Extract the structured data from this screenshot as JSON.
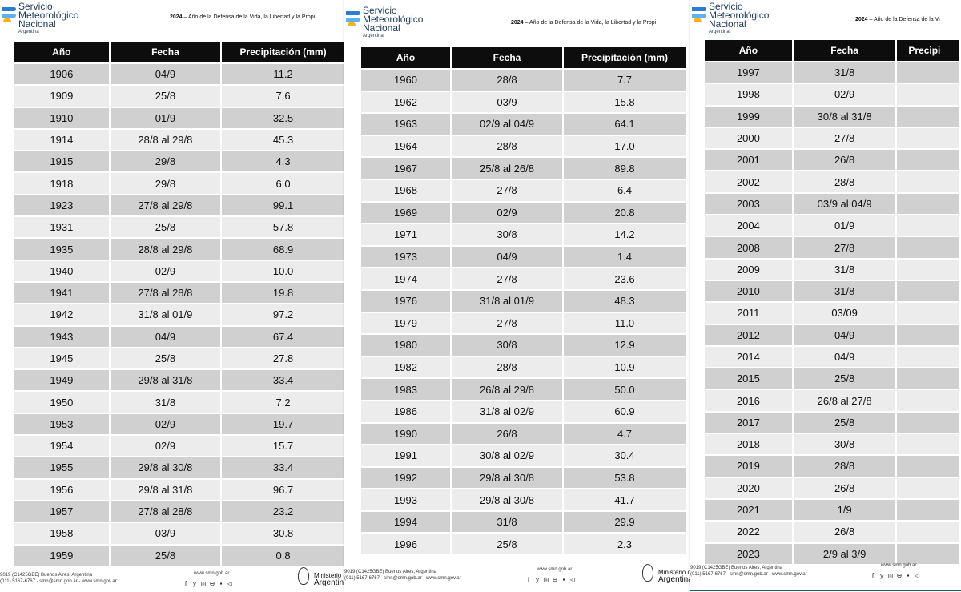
{
  "brand": {
    "line1": "Servicio",
    "line2": "Meteorológico",
    "line3": "Nacional",
    "country": "Argentina"
  },
  "motto": {
    "year": "2024",
    "page1": " – Año de la Defensa de la Vida, la Libertad y la Propi",
    "page2": " – Año de la Defensa de la Vida, la Libertad y la Propi",
    "page3": " – Año de la Defensa de la Vi"
  },
  "columns": {
    "year": "Año",
    "date": "Fecha",
    "precip": "Precipitación (mm)",
    "precip_cut": "Precipi"
  },
  "page1_rows": [
    {
      "year": "1906",
      "date": "04/9",
      "precip": "11.2"
    },
    {
      "year": "1909",
      "date": "25/8",
      "precip": "7.6"
    },
    {
      "year": "1910",
      "date": "01/9",
      "precip": "32.5"
    },
    {
      "year": "1914",
      "date": "28/8 al 29/8",
      "precip": "45.3"
    },
    {
      "year": "1915",
      "date": "29/8",
      "precip": "4.3"
    },
    {
      "year": "1918",
      "date": "29/8",
      "precip": "6.0"
    },
    {
      "year": "1923",
      "date": "27/8 al 29/8",
      "precip": "99.1"
    },
    {
      "year": "1931",
      "date": "25/8",
      "precip": "57.8"
    },
    {
      "year": "1935",
      "date": "28/8 al 29/8",
      "precip": "68.9"
    },
    {
      "year": "1940",
      "date": "02/9",
      "precip": "10.0"
    },
    {
      "year": "1941",
      "date": "27/8 al 28/8",
      "precip": "19.8"
    },
    {
      "year": "1942",
      "date": "31/8 al 01/9",
      "precip": "97.2"
    },
    {
      "year": "1943",
      "date": "04/9",
      "precip": "67.4"
    },
    {
      "year": "1945",
      "date": "25/8",
      "precip": "27.8"
    },
    {
      "year": "1949",
      "date": "29/8 al 31/8",
      "precip": "33.4"
    },
    {
      "year": "1950",
      "date": "31/8",
      "precip": "7.2"
    },
    {
      "year": "1953",
      "date": "02/9",
      "precip": "19.7"
    },
    {
      "year": "1954",
      "date": "02/9",
      "precip": "15.7"
    },
    {
      "year": "1955",
      "date": "29/8 al 30/8",
      "precip": "33.4"
    },
    {
      "year": "1956",
      "date": "29/8 al 31/8",
      "precip": "96.7"
    },
    {
      "year": "1957",
      "date": "27/8 al 28/8",
      "precip": "23.2"
    },
    {
      "year": "1958",
      "date": "03/9",
      "precip": "30.8"
    },
    {
      "year": "1959",
      "date": "25/8",
      "precip": "0.8"
    }
  ],
  "page2_rows": [
    {
      "year": "1960",
      "date": "28/8",
      "precip": "7.7"
    },
    {
      "year": "1962",
      "date": "03/9",
      "precip": "15.8"
    },
    {
      "year": "1963",
      "date": "02/9 al 04/9",
      "precip": "64.1"
    },
    {
      "year": "1964",
      "date": "28/8",
      "precip": "17.0"
    },
    {
      "year": "1967",
      "date": "25/8 al 26/8",
      "precip": "89.8"
    },
    {
      "year": "1968",
      "date": "27/8",
      "precip": "6.4"
    },
    {
      "year": "1969",
      "date": "02/9",
      "precip": "20.8"
    },
    {
      "year": "1971",
      "date": "30/8",
      "precip": "14.2"
    },
    {
      "year": "1973",
      "date": "04/9",
      "precip": "1.4"
    },
    {
      "year": "1974",
      "date": "27/8",
      "precip": "23.6"
    },
    {
      "year": "1976",
      "date": "31/8 al 01/9",
      "precip": "48.3"
    },
    {
      "year": "1979",
      "date": "27/8",
      "precip": "11.0"
    },
    {
      "year": "1980",
      "date": "30/8",
      "precip": "12.9"
    },
    {
      "year": "1982",
      "date": "28/8",
      "precip": "10.9"
    },
    {
      "year": "1983",
      "date": "26/8 al 29/8",
      "precip": "50.0"
    },
    {
      "year": "1986",
      "date": "31/8 al 02/9",
      "precip": "60.9"
    },
    {
      "year": "1990",
      "date": "26/8",
      "precip": "4.7"
    },
    {
      "year": "1991",
      "date": "30/8 al 02/9",
      "precip": "30.4"
    },
    {
      "year": "1992",
      "date": "29/8 al 30/8",
      "precip": "53.8"
    },
    {
      "year": "1993",
      "date": "29/8 al 30/8",
      "precip": "41.7"
    },
    {
      "year": "1994",
      "date": "31/8",
      "precip": "29.9"
    },
    {
      "year": "1996",
      "date": "25/8",
      "precip": "2.3"
    }
  ],
  "page3_rows": [
    {
      "year": "1997",
      "date": "31/8"
    },
    {
      "year": "1998",
      "date": "02/9"
    },
    {
      "year": "1999",
      "date": "30/8 al 31/8"
    },
    {
      "year": "2000",
      "date": "27/8"
    },
    {
      "year": "2001",
      "date": "26/8"
    },
    {
      "year": "2002",
      "date": "28/8"
    },
    {
      "year": "2003",
      "date": "03/9 al 04/9"
    },
    {
      "year": "2004",
      "date": "01/9"
    },
    {
      "year": "2008",
      "date": "27/8"
    },
    {
      "year": "2009",
      "date": "31/8"
    },
    {
      "year": "2010",
      "date": "31/8"
    },
    {
      "year": "2011",
      "date": "03/09"
    },
    {
      "year": "2012",
      "date": "04/9"
    },
    {
      "year": "2014",
      "date": "04/9"
    },
    {
      "year": "2015",
      "date": "25/8"
    },
    {
      "year": "2016",
      "date": "26/8 al 27/8"
    },
    {
      "year": "2017",
      "date": "25/8"
    },
    {
      "year": "2018",
      "date": "30/8"
    },
    {
      "year": "2019",
      "date": "28/8"
    },
    {
      "year": "2020",
      "date": "26/8"
    },
    {
      "year": "2021",
      "date": "1/9"
    },
    {
      "year": "2022",
      "date": "26/8"
    },
    {
      "year": "2023",
      "date": "2/9 al 3/9"
    }
  ],
  "footer": {
    "page1_address": "9019 (C1425GBE) Buenos Aires, Argentina",
    "page1_phone": "(011) 5167-6767 - smn@smn.gob.ar - www.smn.gov.ar",
    "page2_address": "9019 (C1425GBE) Buenos Aires, Argentina",
    "page2_phone": "(011) 5167-6767 - smn@smn.gob.ar - www.smn.gov.ar",
    "page3_address": "9019 (C1425GBE) Buenos Aires, Argentina",
    "page3_phone": "(011) 5167-6767 - smn@smn.gob.ar - www.smn.gov.ar",
    "web": "www.smn.gob.ar",
    "ministerio_line1": "Ministerio de",
    "ministerio_line2": "Argentina",
    "ministerio2_line1": "Ministerio de",
    "ministerio2_line2": "Argentina",
    "icons": [
      "facebook-icon",
      "twitter-icon",
      "instagram-icon",
      "linkedin-icon",
      "youtube-icon",
      "telegram-icon"
    ]
  }
}
